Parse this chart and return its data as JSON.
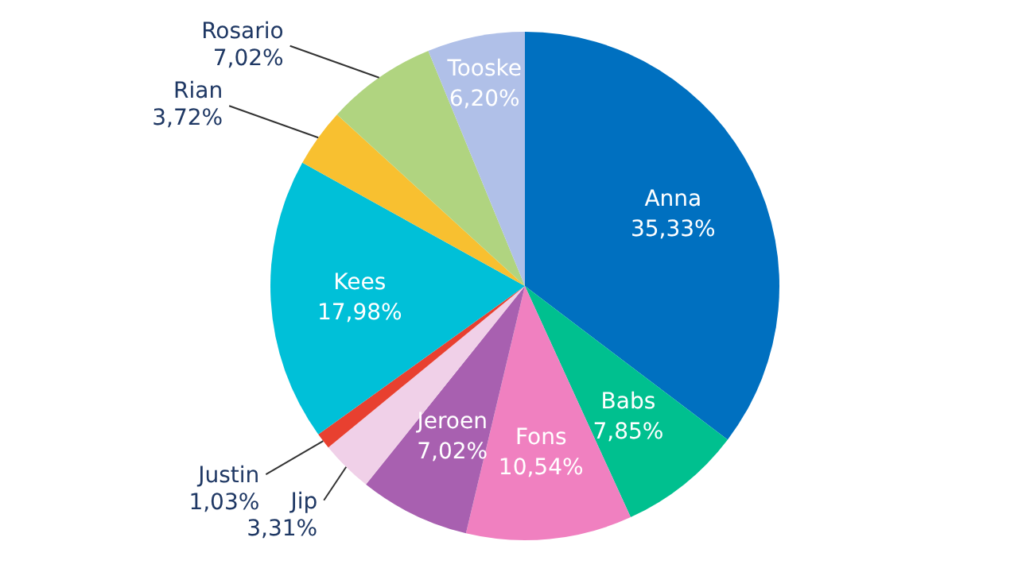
{
  "chart_data": {
    "type": "pie",
    "categories": [
      "Anna",
      "Babs",
      "Fons",
      "Jeroen",
      "Jip",
      "Justin",
      "Kees",
      "Rian",
      "Rosario",
      "Tooske"
    ],
    "values": [
      35.33,
      7.85,
      10.54,
      7.02,
      3.31,
      1.03,
      17.98,
      3.72,
      7.02,
      6.2
    ],
    "value_labels": [
      "35,33%",
      "7,85%",
      "10,54%",
      "7,02%",
      "3,31%",
      "1,03%",
      "17,98%",
      "3,72%",
      "7,02%",
      "6,20%"
    ],
    "colors": [
      "#0070c0",
      "#00c08f",
      "#f080c0",
      "#a860b0",
      "#f0d0e8",
      "#e84030",
      "#00c0d8",
      "#f8c030",
      "#b0d480",
      "#b0c0e8"
    ]
  }
}
